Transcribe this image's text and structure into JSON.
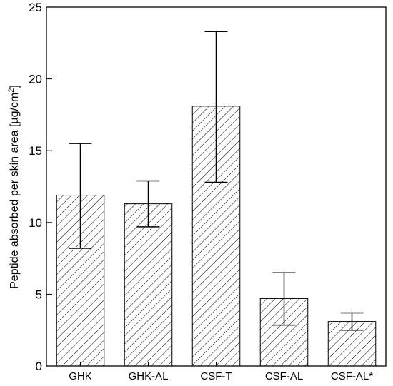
{
  "chart_data": {
    "type": "bar",
    "categories": [
      "GHK",
      "GHK-AL",
      "CSF-T",
      "CSF-AL",
      "CSF-AL*"
    ],
    "values": [
      11.9,
      11.3,
      18.1,
      4.7,
      3.1
    ],
    "error_low": [
      8.2,
      9.7,
      12.8,
      2.85,
      2.5
    ],
    "error_high": [
      15.5,
      12.9,
      23.3,
      6.5,
      3.7
    ],
    "ylabel_main": "Peptide absorbed per skin area [µg/cm",
    "ylabel_sup": "2",
    "ylabel_end": "]",
    "ylim": [
      0,
      25
    ],
    "yticks": [
      0,
      5,
      10,
      15,
      20,
      25
    ],
    "bar_fill": "hatched diagonal",
    "grid": false,
    "colors": {
      "stroke": "#000000",
      "background": "#ffffff"
    }
  }
}
